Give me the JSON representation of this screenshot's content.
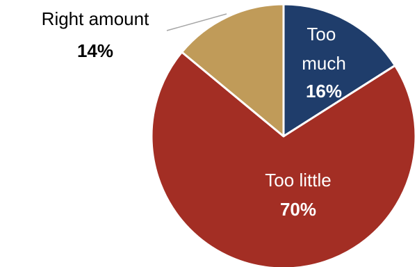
{
  "chart_data": {
    "type": "pie",
    "slices": [
      {
        "label_lines": [
          "Too",
          "much"
        ],
        "value_label": "16%",
        "value": 16,
        "color": "#1f3d6b",
        "label_color": "#ffffff"
      },
      {
        "label_lines": [
          "Too little"
        ],
        "value_label": "70%",
        "value": 70,
        "color": "#a32e24",
        "label_color": "#ffffff"
      },
      {
        "label_lines": [
          "Right amount"
        ],
        "value_label": "14%",
        "value": 14,
        "color": "#c09b59",
        "label_color": "#000000"
      }
    ],
    "start_angle_deg": 0,
    "direction": "clockwise",
    "legend": "none"
  }
}
